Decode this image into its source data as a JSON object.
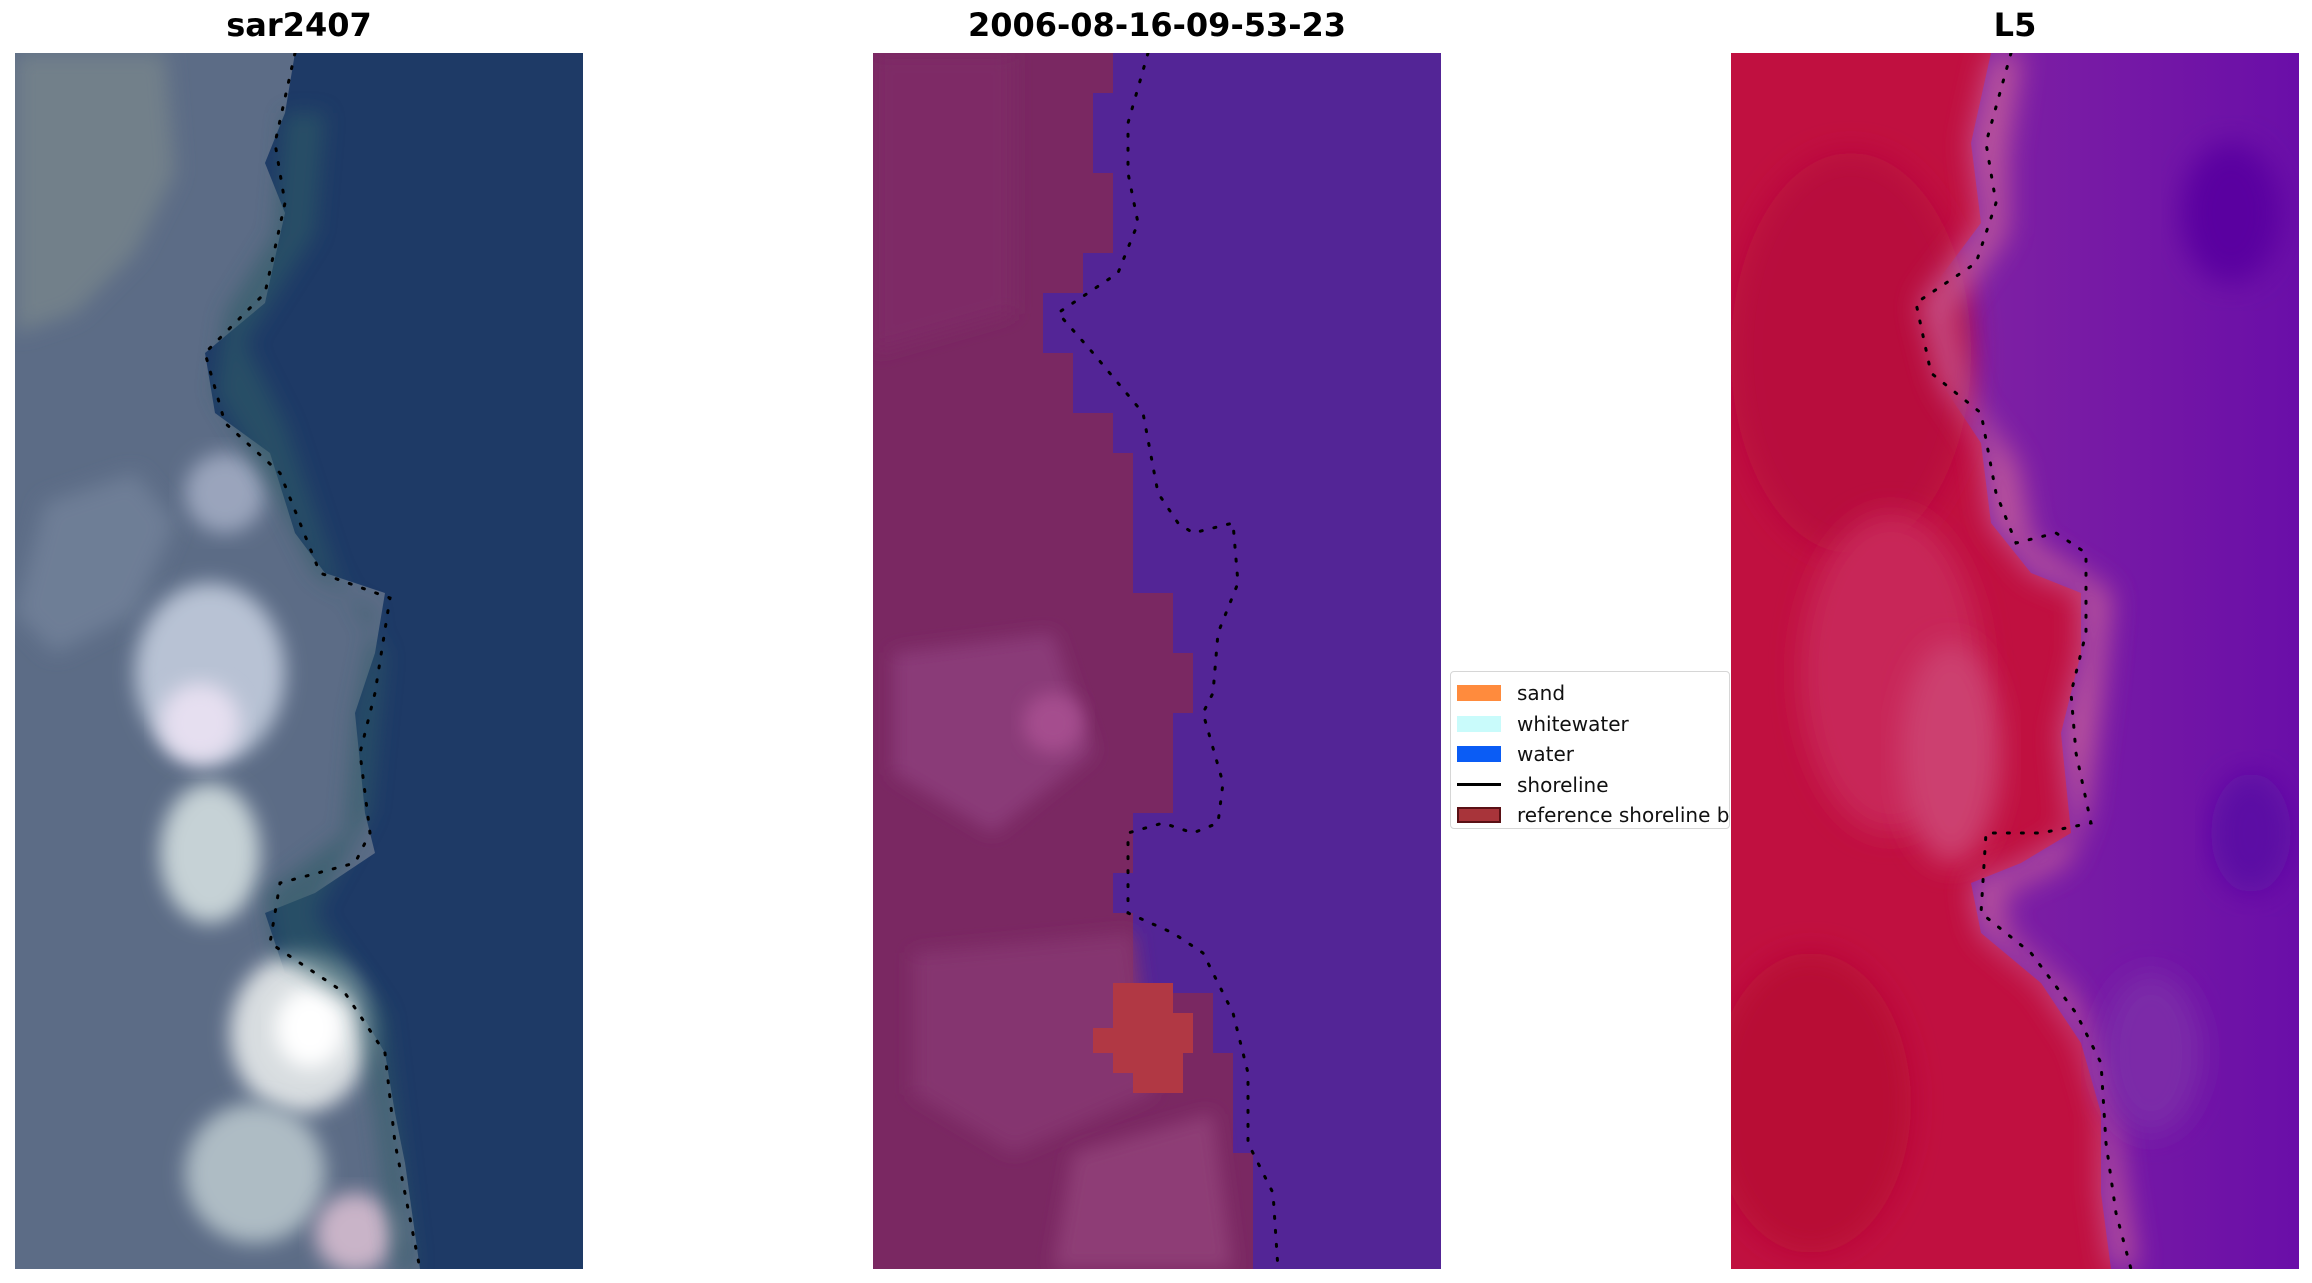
{
  "panels": [
    {
      "title": "sar2407",
      "image": "true-color RGB satellite tile"
    },
    {
      "title": "2006-08-16-09-53-23",
      "image": "classified overlay tile"
    },
    {
      "title": "L5",
      "image": "MNDWI index tile"
    }
  ],
  "legend": {
    "items": [
      {
        "label": "sand",
        "kind": "patch",
        "color": "#ff8b3d"
      },
      {
        "label": "whitewater",
        "kind": "patch",
        "color": "#c9fbfb"
      },
      {
        "label": "water",
        "kind": "patch",
        "color": "#0a5cf5"
      },
      {
        "label": "shoreline",
        "kind": "line",
        "color": "#000000"
      },
      {
        "label": "reference shoreline buffer",
        "kind": "patch",
        "color": "#a8343a",
        "edge": "#5a1015"
      }
    ]
  },
  "colors": {
    "water_dark_blue": "#1e3a66",
    "land_purple": "#7a2862",
    "water_purple": "#532596",
    "index_red": "#c01040",
    "index_violet": "#6a0ea8"
  }
}
